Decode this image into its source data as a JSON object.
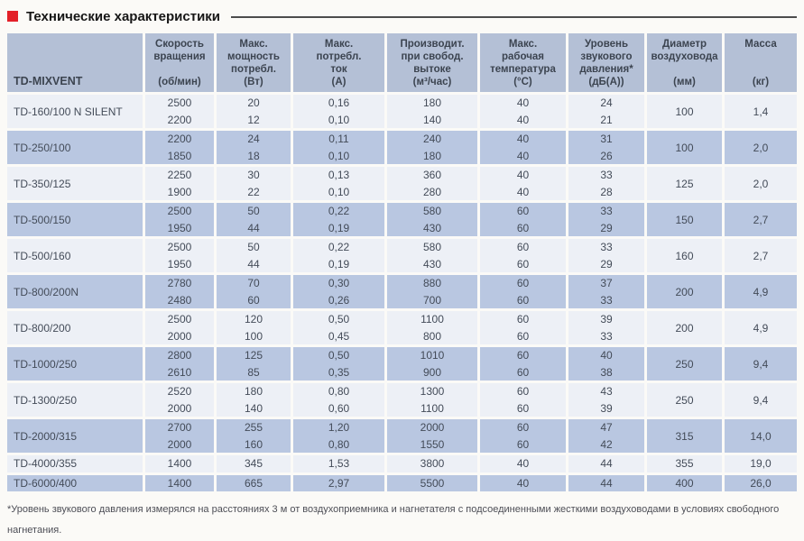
{
  "title": {
    "label": "Технические характеристики"
  },
  "colors": {
    "accent_red": "#e32028",
    "header_bg": "#b4c0d6",
    "row_light": "#edf0f6",
    "row_dark": "#b9c7e1",
    "text": "#434b58"
  },
  "table": {
    "model_header": "TD-MIXVENT",
    "columns": [
      {
        "label": "Скорость\nвращения",
        "unit": "(об/мин)"
      },
      {
        "label": "Макс.\nмощность\nпотребл.",
        "unit": "(Вт)"
      },
      {
        "label": "Макс.\nпотребл.\nток",
        "unit": "(А)"
      },
      {
        "label": "Производит.\nпри свобод.\nвытоке",
        "unit": "(м³/час)"
      },
      {
        "label": "Макс.\nрабочая\nтемпература",
        "unit": "(°С)"
      },
      {
        "label": "Уровень\nзвукового\nдавления*",
        "unit": "(дБ(А))"
      },
      {
        "label": "Диаметр\nвоздуховода",
        "unit": "(мм)"
      },
      {
        "label": "Масса",
        "unit": "(кг)"
      }
    ],
    "groups": [
      {
        "model": "TD-160/100 N SILENT",
        "rows": [
          [
            "2500",
            "20",
            "0,16",
            "180",
            "40",
            "24"
          ],
          [
            "2200",
            "12",
            "0,10",
            "140",
            "40",
            "21"
          ]
        ],
        "diameter": "100",
        "mass": "1,4"
      },
      {
        "model": "TD-250/100",
        "rows": [
          [
            "2200",
            "24",
            "0,11",
            "240",
            "40",
            "31"
          ],
          [
            "1850",
            "18",
            "0,10",
            "180",
            "40",
            "26"
          ]
        ],
        "diameter": "100",
        "mass": "2,0"
      },
      {
        "model": "TD-350/125",
        "rows": [
          [
            "2250",
            "30",
            "0,13",
            "360",
            "40",
            "33"
          ],
          [
            "1900",
            "22",
            "0,10",
            "280",
            "40",
            "28"
          ]
        ],
        "diameter": "125",
        "mass": "2,0"
      },
      {
        "model": "TD-500/150",
        "rows": [
          [
            "2500",
            "50",
            "0,22",
            "580",
            "60",
            "33"
          ],
          [
            "1950",
            "44",
            "0,19",
            "430",
            "60",
            "29"
          ]
        ],
        "diameter": "150",
        "mass": "2,7"
      },
      {
        "model": "TD-500/160",
        "rows": [
          [
            "2500",
            "50",
            "0,22",
            "580",
            "60",
            "33"
          ],
          [
            "1950",
            "44",
            "0,19",
            "430",
            "60",
            "29"
          ]
        ],
        "diameter": "160",
        "mass": "2,7"
      },
      {
        "model": "TD-800/200N",
        "rows": [
          [
            "2780",
            "70",
            "0,30",
            "880",
            "60",
            "37"
          ],
          [
            "2480",
            "60",
            "0,26",
            "700",
            "60",
            "33"
          ]
        ],
        "diameter": "200",
        "mass": "4,9"
      },
      {
        "model": "TD-800/200",
        "rows": [
          [
            "2500",
            "120",
            "0,50",
            "1100",
            "60",
            "39"
          ],
          [
            "2000",
            "100",
            "0,45",
            "800",
            "60",
            "33"
          ]
        ],
        "diameter": "200",
        "mass": "4,9"
      },
      {
        "model": "TD-1000/250",
        "rows": [
          [
            "2800",
            "125",
            "0,50",
            "1010",
            "60",
            "40"
          ],
          [
            "2610",
            "85",
            "0,35",
            "900",
            "60",
            "38"
          ]
        ],
        "diameter": "250",
        "mass": "9,4"
      },
      {
        "model": "TD-1300/250",
        "rows": [
          [
            "2520",
            "180",
            "0,80",
            "1300",
            "60",
            "43"
          ],
          [
            "2000",
            "140",
            "0,60",
            "1100",
            "60",
            "39"
          ]
        ],
        "diameter": "250",
        "mass": "9,4"
      },
      {
        "model": "TD-2000/315",
        "rows": [
          [
            "2700",
            "255",
            "1,20",
            "2000",
            "60",
            "47"
          ],
          [
            "2000",
            "160",
            "0,80",
            "1550",
            "60",
            "42"
          ]
        ],
        "diameter": "315",
        "mass": "14,0"
      },
      {
        "model": "TD-4000/355",
        "rows": [
          [
            "1400",
            "345",
            "1,53",
            "3800",
            "40",
            "44"
          ]
        ],
        "diameter": "355",
        "mass": "19,0"
      },
      {
        "model": "TD-6000/400",
        "rows": [
          [
            "1400",
            "665",
            "2,97",
            "5500",
            "40",
            "44"
          ]
        ],
        "diameter": "400",
        "mass": "26,0"
      }
    ]
  },
  "footnote": "*Уровень звукового давления измерялся на расстояниях 3 м от воздухоприемника и нагнетателя с подсоединенными жесткими воздуховодами в условиях свободного нагнетания."
}
